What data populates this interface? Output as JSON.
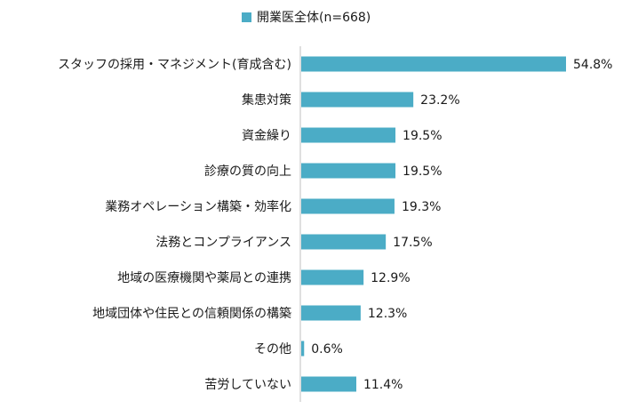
{
  "chart_data": {
    "type": "bar",
    "orientation": "horizontal",
    "legend": {
      "label": "開業医全体(n=668)",
      "position": "top"
    },
    "series": [
      {
        "name": "開業医全体(n=668)",
        "color": "#4BACC6"
      }
    ],
    "categories": [
      "スタッフの採用・マネジメント(育成含む)",
      "集患対策",
      "資金繰り",
      "診療の質の向上",
      "業務オペレーション構築・効率化",
      "法務とコンプライアンス",
      "地域の医療機関や薬局との連携",
      "地域団体や住民との信頼関係の構築",
      "その他",
      "苦労していない"
    ],
    "values": [
      54.8,
      23.2,
      19.5,
      19.5,
      19.3,
      17.5,
      12.9,
      12.3,
      0.6,
      11.4
    ],
    "value_labels": [
      "54.8%",
      "23.2%",
      "19.5%",
      "19.5%",
      "19.3%",
      "17.5%",
      "12.9%",
      "12.3%",
      "0.6%",
      "11.4%"
    ],
    "unit": "%",
    "xlim": [
      0,
      54.8
    ],
    "grid": false
  }
}
